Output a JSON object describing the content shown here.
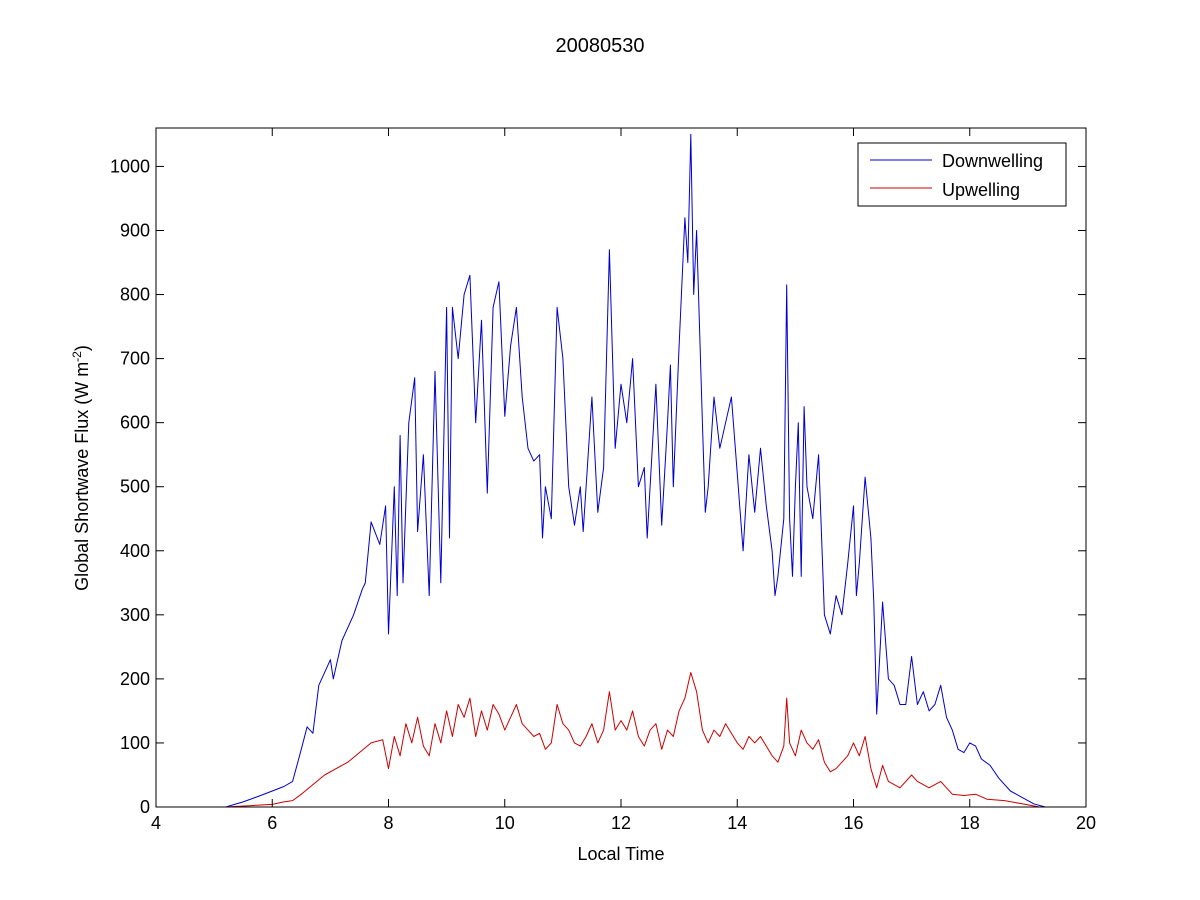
{
  "chart_data": {
    "type": "line",
    "title": "20080530",
    "xlabel": "Local Time",
    "ylabel_main": "Global Shortwave Flux (W m",
    "ylabel_sup": "-2",
    "ylabel_close": ")",
    "xlim": [
      4,
      20
    ],
    "ylim": [
      0,
      1060
    ],
    "xticks": [
      4,
      6,
      8,
      10,
      12,
      14,
      16,
      18,
      20
    ],
    "yticks": [
      0,
      100,
      200,
      300,
      400,
      500,
      600,
      700,
      800,
      900,
      1000
    ],
    "grid": false,
    "legend_position": "top-right",
    "series": [
      {
        "name": "Downwelling",
        "color": "#0000cc",
        "points": [
          [
            5.2,
            0
          ],
          [
            5.5,
            8
          ],
          [
            5.8,
            18
          ],
          [
            6.0,
            25
          ],
          [
            6.2,
            32
          ],
          [
            6.35,
            40
          ],
          [
            6.5,
            90
          ],
          [
            6.6,
            125
          ],
          [
            6.7,
            115
          ],
          [
            6.8,
            190
          ],
          [
            7.0,
            230
          ],
          [
            7.05,
            200
          ],
          [
            7.2,
            260
          ],
          [
            7.4,
            300
          ],
          [
            7.55,
            340
          ],
          [
            7.6,
            350
          ],
          [
            7.7,
            445
          ],
          [
            7.85,
            410
          ],
          [
            7.95,
            470
          ],
          [
            8.0,
            270
          ],
          [
            8.1,
            500
          ],
          [
            8.15,
            330
          ],
          [
            8.2,
            580
          ],
          [
            8.25,
            350
          ],
          [
            8.35,
            600
          ],
          [
            8.45,
            670
          ],
          [
            8.5,
            430
          ],
          [
            8.6,
            550
          ],
          [
            8.7,
            330
          ],
          [
            8.8,
            680
          ],
          [
            8.9,
            350
          ],
          [
            9.0,
            780
          ],
          [
            9.05,
            420
          ],
          [
            9.1,
            780
          ],
          [
            9.2,
            700
          ],
          [
            9.3,
            800
          ],
          [
            9.4,
            830
          ],
          [
            9.5,
            600
          ],
          [
            9.6,
            760
          ],
          [
            9.7,
            490
          ],
          [
            9.8,
            780
          ],
          [
            9.9,
            820
          ],
          [
            10.0,
            610
          ],
          [
            10.1,
            720
          ],
          [
            10.2,
            780
          ],
          [
            10.3,
            640
          ],
          [
            10.4,
            560
          ],
          [
            10.5,
            540
          ],
          [
            10.6,
            550
          ],
          [
            10.65,
            420
          ],
          [
            10.7,
            500
          ],
          [
            10.8,
            450
          ],
          [
            10.9,
            780
          ],
          [
            11.0,
            700
          ],
          [
            11.1,
            500
          ],
          [
            11.2,
            440
          ],
          [
            11.3,
            500
          ],
          [
            11.35,
            430
          ],
          [
            11.5,
            640
          ],
          [
            11.6,
            460
          ],
          [
            11.7,
            530
          ],
          [
            11.8,
            870
          ],
          [
            11.9,
            560
          ],
          [
            12.0,
            660
          ],
          [
            12.1,
            600
          ],
          [
            12.2,
            700
          ],
          [
            12.3,
            500
          ],
          [
            12.4,
            530
          ],
          [
            12.45,
            420
          ],
          [
            12.6,
            660
          ],
          [
            12.7,
            440
          ],
          [
            12.8,
            600
          ],
          [
            12.85,
            690
          ],
          [
            12.9,
            500
          ],
          [
            13.0,
            720
          ],
          [
            13.1,
            920
          ],
          [
            13.15,
            850
          ],
          [
            13.2,
            1050
          ],
          [
            13.25,
            800
          ],
          [
            13.3,
            900
          ],
          [
            13.4,
            600
          ],
          [
            13.45,
            460
          ],
          [
            13.5,
            500
          ],
          [
            13.6,
            640
          ],
          [
            13.7,
            560
          ],
          [
            13.8,
            600
          ],
          [
            13.9,
            640
          ],
          [
            14.0,
            520
          ],
          [
            14.1,
            400
          ],
          [
            14.2,
            550
          ],
          [
            14.3,
            460
          ],
          [
            14.4,
            560
          ],
          [
            14.5,
            470
          ],
          [
            14.6,
            400
          ],
          [
            14.65,
            330
          ],
          [
            14.7,
            360
          ],
          [
            14.8,
            450
          ],
          [
            14.85,
            815
          ],
          [
            14.9,
            450
          ],
          [
            14.95,
            360
          ],
          [
            15.0,
            500
          ],
          [
            15.05,
            600
          ],
          [
            15.1,
            360
          ],
          [
            15.15,
            625
          ],
          [
            15.2,
            500
          ],
          [
            15.3,
            450
          ],
          [
            15.4,
            550
          ],
          [
            15.5,
            300
          ],
          [
            15.6,
            270
          ],
          [
            15.7,
            330
          ],
          [
            15.8,
            300
          ],
          [
            15.9,
            380
          ],
          [
            16.0,
            470
          ],
          [
            16.05,
            330
          ],
          [
            16.1,
            380
          ],
          [
            16.2,
            515
          ],
          [
            16.3,
            420
          ],
          [
            16.35,
            320
          ],
          [
            16.4,
            145
          ],
          [
            16.5,
            320
          ],
          [
            16.6,
            200
          ],
          [
            16.7,
            190
          ],
          [
            16.8,
            160
          ],
          [
            16.9,
            160
          ],
          [
            17.0,
            235
          ],
          [
            17.1,
            160
          ],
          [
            17.2,
            180
          ],
          [
            17.3,
            150
          ],
          [
            17.4,
            160
          ],
          [
            17.5,
            190
          ],
          [
            17.6,
            140
          ],
          [
            17.7,
            120
          ],
          [
            17.8,
            90
          ],
          [
            17.9,
            85
          ],
          [
            18.0,
            100
          ],
          [
            18.1,
            95
          ],
          [
            18.2,
            75
          ],
          [
            18.35,
            65
          ],
          [
            18.5,
            45
          ],
          [
            18.7,
            25
          ],
          [
            18.9,
            15
          ],
          [
            19.1,
            5
          ],
          [
            19.3,
            0
          ]
        ]
      },
      {
        "name": "Upwelling",
        "color": "#cc0000",
        "points": [
          [
            5.2,
            0
          ],
          [
            5.6,
            2
          ],
          [
            6.0,
            4
          ],
          [
            6.2,
            8
          ],
          [
            6.35,
            10
          ],
          [
            6.5,
            20
          ],
          [
            6.7,
            35
          ],
          [
            6.9,
            50
          ],
          [
            7.1,
            60
          ],
          [
            7.3,
            70
          ],
          [
            7.5,
            85
          ],
          [
            7.7,
            100
          ],
          [
            7.9,
            105
          ],
          [
            8.0,
            60
          ],
          [
            8.1,
            110
          ],
          [
            8.2,
            80
          ],
          [
            8.3,
            130
          ],
          [
            8.4,
            100
          ],
          [
            8.5,
            140
          ],
          [
            8.6,
            95
          ],
          [
            8.7,
            80
          ],
          [
            8.8,
            130
          ],
          [
            8.9,
            100
          ],
          [
            9.0,
            150
          ],
          [
            9.1,
            110
          ],
          [
            9.2,
            160
          ],
          [
            9.3,
            140
          ],
          [
            9.4,
            170
          ],
          [
            9.5,
            110
          ],
          [
            9.6,
            150
          ],
          [
            9.7,
            120
          ],
          [
            9.8,
            160
          ],
          [
            9.9,
            145
          ],
          [
            10.0,
            120
          ],
          [
            10.1,
            140
          ],
          [
            10.2,
            160
          ],
          [
            10.3,
            130
          ],
          [
            10.4,
            120
          ],
          [
            10.5,
            110
          ],
          [
            10.6,
            115
          ],
          [
            10.7,
            90
          ],
          [
            10.8,
            100
          ],
          [
            10.9,
            160
          ],
          [
            11.0,
            130
          ],
          [
            11.1,
            120
          ],
          [
            11.2,
            100
          ],
          [
            11.3,
            95
          ],
          [
            11.4,
            110
          ],
          [
            11.5,
            130
          ],
          [
            11.6,
            100
          ],
          [
            11.7,
            120
          ],
          [
            11.8,
            180
          ],
          [
            11.9,
            120
          ],
          [
            12.0,
            135
          ],
          [
            12.1,
            120
          ],
          [
            12.2,
            150
          ],
          [
            12.3,
            110
          ],
          [
            12.4,
            95
          ],
          [
            12.5,
            120
          ],
          [
            12.6,
            130
          ],
          [
            12.7,
            90
          ],
          [
            12.8,
            120
          ],
          [
            12.9,
            110
          ],
          [
            13.0,
            150
          ],
          [
            13.1,
            170
          ],
          [
            13.2,
            210
          ],
          [
            13.3,
            180
          ],
          [
            13.4,
            120
          ],
          [
            13.5,
            100
          ],
          [
            13.6,
            120
          ],
          [
            13.7,
            110
          ],
          [
            13.8,
            130
          ],
          [
            13.9,
            115
          ],
          [
            14.0,
            100
          ],
          [
            14.1,
            90
          ],
          [
            14.2,
            110
          ],
          [
            14.3,
            100
          ],
          [
            14.4,
            110
          ],
          [
            14.5,
            95
          ],
          [
            14.6,
            80
          ],
          [
            14.7,
            70
          ],
          [
            14.8,
            95
          ],
          [
            14.85,
            170
          ],
          [
            14.9,
            100
          ],
          [
            15.0,
            80
          ],
          [
            15.1,
            120
          ],
          [
            15.2,
            100
          ],
          [
            15.3,
            90
          ],
          [
            15.4,
            105
          ],
          [
            15.5,
            70
          ],
          [
            15.6,
            55
          ],
          [
            15.7,
            60
          ],
          [
            15.8,
            70
          ],
          [
            15.9,
            80
          ],
          [
            16.0,
            100
          ],
          [
            16.1,
            80
          ],
          [
            16.2,
            110
          ],
          [
            16.3,
            60
          ],
          [
            16.4,
            30
          ],
          [
            16.5,
            65
          ],
          [
            16.6,
            40
          ],
          [
            16.8,
            30
          ],
          [
            17.0,
            50
          ],
          [
            17.1,
            40
          ],
          [
            17.3,
            30
          ],
          [
            17.5,
            40
          ],
          [
            17.7,
            20
          ],
          [
            17.9,
            18
          ],
          [
            18.1,
            20
          ],
          [
            18.3,
            12
          ],
          [
            18.6,
            10
          ],
          [
            18.9,
            5
          ],
          [
            19.2,
            0
          ]
        ]
      }
    ]
  }
}
